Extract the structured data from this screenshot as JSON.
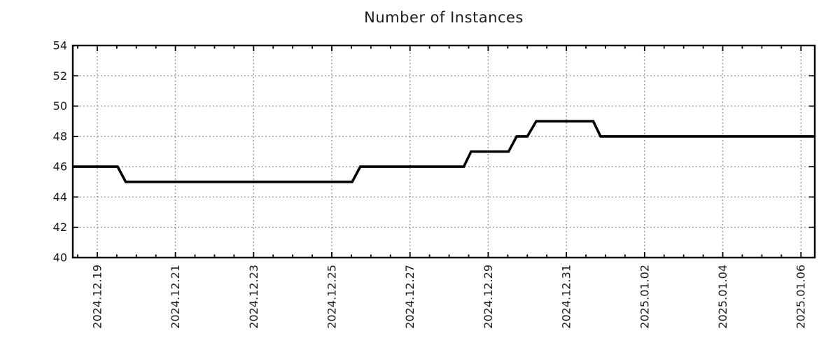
{
  "page": {
    "background_color": "#ffffff",
    "text_color": "#1c1c1c"
  },
  "chart_data": {
    "type": "line",
    "title": "Number of Instances",
    "legend": {
      "show": false
    },
    "grid": {
      "show": true,
      "color": "#8e8e8e",
      "style": "dotted"
    },
    "axis_color": "#000000",
    "x_axis": {
      "kind": "time",
      "start": "2024-12-18 09:00",
      "end": "2025-01-06 08:30",
      "minor_tick_hours": 12,
      "major_ticks": [
        {
          "label": "2024.12.19",
          "t": "2024-12-19 00:00"
        },
        {
          "label": "2024.12.21",
          "t": "2024-12-21 00:00"
        },
        {
          "label": "2024.12.23",
          "t": "2024-12-23 00:00"
        },
        {
          "label": "2024.12.25",
          "t": "2024-12-25 00:00"
        },
        {
          "label": "2024.12.27",
          "t": "2024-12-27 00:00"
        },
        {
          "label": "2024.12.29",
          "t": "2024-12-29 00:00"
        },
        {
          "label": "2024.12.31",
          "t": "2024-12-31 00:00"
        },
        {
          "label": "2025.01.02",
          "t": "2025-01-02 00:00"
        },
        {
          "label": "2025.01.04",
          "t": "2025-01-04 00:00"
        },
        {
          "label": "2025.01.06",
          "t": "2025-01-06 00:00"
        }
      ]
    },
    "y_axis": {
      "min": 40,
      "max": 54,
      "tick_step": 2,
      "tick_labels": [
        "40",
        "42",
        "44",
        "46",
        "48",
        "50",
        "52",
        "54"
      ]
    },
    "series": [
      {
        "name": "instances",
        "color": "#000000",
        "points": [
          {
            "t": "2024-12-18 09:00",
            "v": 46
          },
          {
            "t": "2024-12-19 12:30",
            "v": 46
          },
          {
            "t": "2024-12-19 17:30",
            "v": 45
          },
          {
            "t": "2024-12-25 12:30",
            "v": 45
          },
          {
            "t": "2024-12-25 17:30",
            "v": 46
          },
          {
            "t": "2024-12-28 09:00",
            "v": 46
          },
          {
            "t": "2024-12-28 13:30",
            "v": 47
          },
          {
            "t": "2024-12-29 12:30",
            "v": 47
          },
          {
            "t": "2024-12-29 17:30",
            "v": 48
          },
          {
            "t": "2024-12-30 00:00",
            "v": 48
          },
          {
            "t": "2024-12-30 05:30",
            "v": 49
          },
          {
            "t": "2024-12-31 16:30",
            "v": 49
          },
          {
            "t": "2024-12-31 21:00",
            "v": 48
          },
          {
            "t": "2025-01-06 08:30",
            "v": 48
          }
        ]
      }
    ]
  }
}
